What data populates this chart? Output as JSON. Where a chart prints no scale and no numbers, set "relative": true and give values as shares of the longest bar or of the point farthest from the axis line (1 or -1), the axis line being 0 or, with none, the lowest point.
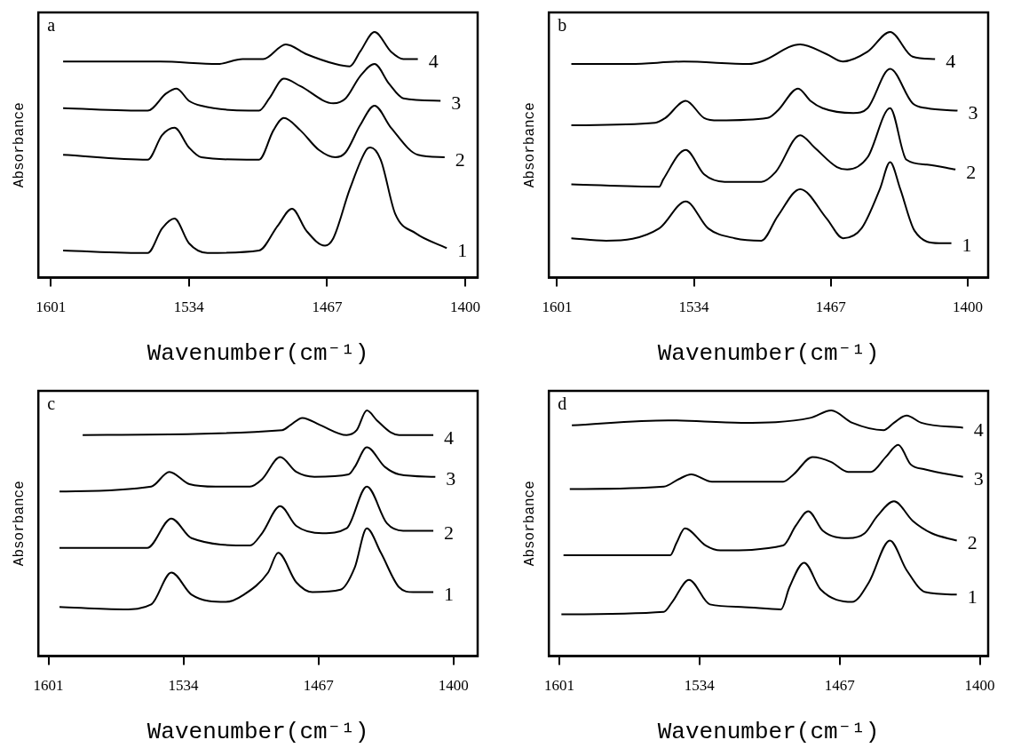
{
  "chart_data": [
    {
      "type": "line",
      "annotations": [
        "a"
      ],
      "xlabel": "Wavenumber(cm⁻¹)",
      "ylabel": "Absorbance",
      "relative": true,
      "xlim": [
        1607,
        1394
      ],
      "xticks": [
        1601,
        1534,
        1467,
        1400
      ],
      "marker": "none",
      "line_style": "solid",
      "tick_labels": "x",
      "series": [
        {
          "name": "4",
          "color": "#000000",
          "x": [
            1595,
            1548,
            1520,
            1508,
            1498,
            1487,
            1477,
            1463,
            1456,
            1451,
            1444,
            1436,
            1430,
            1423
          ],
          "values": [
            0.88,
            0.88,
            0.87,
            0.89,
            0.89,
            0.95,
            0.91,
            0.87,
            0.86,
            0.92,
            1.0,
            0.92,
            0.89,
            0.89
          ]
        },
        {
          "name": "3",
          "color": "#000000",
          "x": [
            1595,
            1554,
            1545,
            1540,
            1534,
            1528,
            1505,
            1500,
            1495,
            1488,
            1480,
            1464,
            1458,
            1451,
            1444,
            1437,
            1430,
            1412
          ],
          "values": [
            0.69,
            0.68,
            0.75,
            0.77,
            0.72,
            0.7,
            0.68,
            0.68,
            0.73,
            0.81,
            0.78,
            0.71,
            0.73,
            0.82,
            0.87,
            0.79,
            0.73,
            0.72
          ]
        },
        {
          "name": "2",
          "color": "#000000",
          "x": [
            1595,
            1554,
            1547,
            1541,
            1534,
            1528,
            1506,
            1500,
            1493,
            1488,
            1480,
            1471,
            1463,
            1458,
            1451,
            1444,
            1436,
            1423,
            1410
          ],
          "values": [
            0.5,
            0.48,
            0.58,
            0.61,
            0.53,
            0.49,
            0.48,
            0.48,
            0.6,
            0.65,
            0.6,
            0.52,
            0.49,
            0.51,
            0.62,
            0.7,
            0.61,
            0.5,
            0.49
          ]
        },
        {
          "name": "1",
          "color": "#000000",
          "x": [
            1595,
            1554,
            1547,
            1541,
            1534,
            1525,
            1500,
            1491,
            1484,
            1477,
            1468,
            1464,
            1456,
            1448,
            1446,
            1441,
            1434,
            1424,
            1409
          ],
          "values": [
            0.11,
            0.1,
            0.2,
            0.24,
            0.14,
            0.1,
            0.11,
            0.21,
            0.28,
            0.19,
            0.13,
            0.16,
            0.36,
            0.52,
            0.53,
            0.48,
            0.26,
            0.18,
            0.12
          ]
        }
      ]
    },
    {
      "type": "line",
      "annotations": [
        "b"
      ],
      "xlabel": "Wavenumber(cm⁻¹)",
      "ylabel": "Absorbance",
      "relative": true,
      "xlim": [
        1605,
        1390
      ],
      "xticks": [
        1601,
        1534,
        1467,
        1400
      ],
      "marker": "none",
      "line_style": "solid",
      "tick_labels": "x",
      "series": [
        {
          "name": "4",
          "color": "#000000",
          "x": [
            1594,
            1565,
            1539,
            1507,
            1501,
            1482,
            1469,
            1461,
            1449,
            1438,
            1427,
            1416
          ],
          "values": [
            0.87,
            0.87,
            0.88,
            0.87,
            0.88,
            0.95,
            0.91,
            0.88,
            0.92,
            1.0,
            0.9,
            0.89
          ]
        },
        {
          "name": "3",
          "color": "#000000",
          "x": [
            1594,
            1553,
            1548,
            1538,
            1529,
            1522,
            1498,
            1493,
            1483,
            1477,
            1471,
            1456,
            1449,
            1438,
            1427,
            1420,
            1405
          ],
          "values": [
            0.62,
            0.63,
            0.65,
            0.72,
            0.65,
            0.64,
            0.65,
            0.68,
            0.77,
            0.72,
            0.69,
            0.67,
            0.69,
            0.85,
            0.71,
            0.69,
            0.68
          ]
        },
        {
          "name": "2",
          "color": "#000000",
          "x": [
            1594,
            1551,
            1549,
            1538,
            1529,
            1519,
            1501,
            1494,
            1482,
            1475,
            1464,
            1459,
            1449,
            1438,
            1430,
            1420,
            1406
          ],
          "values": [
            0.38,
            0.37,
            0.4,
            0.52,
            0.42,
            0.39,
            0.39,
            0.43,
            0.58,
            0.53,
            0.45,
            0.44,
            0.49,
            0.69,
            0.48,
            0.46,
            0.44
          ]
        },
        {
          "name": "1",
          "color": "#000000",
          "x": [
            1594,
            1577,
            1551,
            1538,
            1527,
            1514,
            1501,
            1493,
            1482,
            1469,
            1461,
            1452,
            1443,
            1438,
            1433,
            1426,
            1414,
            1408
          ],
          "values": [
            0.16,
            0.15,
            0.2,
            0.31,
            0.2,
            0.16,
            0.15,
            0.25,
            0.36,
            0.24,
            0.16,
            0.2,
            0.36,
            0.47,
            0.36,
            0.19,
            0.14,
            0.14
          ]
        }
      ]
    },
    {
      "type": "line",
      "annotations": [
        "c"
      ],
      "xlabel": "Wavenumber(cm⁻¹)",
      "ylabel": "Absorbance",
      "relative": true,
      "xlim": [
        1606,
        1388
      ],
      "xticks": [
        1601,
        1534,
        1467,
        1400
      ],
      "marker": "none",
      "line_style": "solid",
      "tick_labels": "x",
      "series": [
        {
          "name": "4",
          "color": "#000000",
          "x": [
            1584,
            1485,
            1481,
            1475,
            1466,
            1453,
            1448,
            1443,
            1438,
            1431,
            1427,
            1410
          ],
          "values": [
            0.9,
            0.92,
            0.94,
            0.97,
            0.94,
            0.9,
            0.92,
            1.0,
            0.96,
            0.91,
            0.9,
            0.9
          ]
        },
        {
          "name": "3",
          "color": "#000000",
          "x": [
            1595.5,
            1550,
            1541,
            1531,
            1518,
            1501,
            1495,
            1486,
            1478,
            1469,
            1452,
            1449,
            1443,
            1434,
            1427,
            1409
          ],
          "values": [
            0.67,
            0.69,
            0.75,
            0.7,
            0.69,
            0.69,
            0.72,
            0.81,
            0.75,
            0.73,
            0.74,
            0.77,
            0.85,
            0.77,
            0.74,
            0.73
          ]
        },
        {
          "name": "2",
          "color": "#000000",
          "x": [
            1595.5,
            1552,
            1540,
            1530,
            1501,
            1495,
            1486,
            1478,
            1465,
            1453,
            1443,
            1433,
            1425,
            1410
          ],
          "values": [
            0.44,
            0.44,
            0.56,
            0.48,
            0.45,
            0.5,
            0.61,
            0.53,
            0.5,
            0.52,
            0.69,
            0.54,
            0.51,
            0.51
          ]
        },
        {
          "name": "1",
          "color": "#000000",
          "x": [
            1595.5,
            1563.5,
            1550,
            1540,
            1530,
            1513,
            1504,
            1492,
            1487,
            1478,
            1470,
            1456,
            1449,
            1443,
            1436,
            1427,
            1420,
            1410
          ],
          "values": [
            0.2,
            0.19,
            0.21,
            0.34,
            0.25,
            0.22,
            0.25,
            0.34,
            0.42,
            0.3,
            0.26,
            0.27,
            0.36,
            0.52,
            0.42,
            0.28,
            0.26,
            0.26
          ]
        }
      ]
    },
    {
      "type": "line",
      "annotations": [
        "d"
      ],
      "xlabel": "Wavenumber(cm⁻¹)",
      "ylabel": "Absorbance",
      "relative": true,
      "xlim": [
        1606,
        1396
      ],
      "xticks": [
        1601,
        1534,
        1467,
        1400
      ],
      "marker": "none",
      "line_style": "solid",
      "tick_labels": "x",
      "series": [
        {
          "name": "4",
          "color": "#000000",
          "x": [
            1595,
            1549,
            1514,
            1481,
            1471,
            1461,
            1446,
            1441,
            1435,
            1428,
            1408
          ],
          "values": [
            0.94,
            0.96,
            0.95,
            0.97,
            1.0,
            0.95,
            0.92,
            0.95,
            0.98,
            0.95,
            0.93
          ]
        },
        {
          "name": "3",
          "color": "#000000",
          "x": [
            1596,
            1551,
            1544,
            1538,
            1528,
            1494,
            1489,
            1480,
            1471,
            1463,
            1452,
            1445,
            1439,
            1433,
            1426,
            1408
          ],
          "values": [
            0.68,
            0.69,
            0.72,
            0.74,
            0.71,
            0.71,
            0.74,
            0.81,
            0.79,
            0.75,
            0.75,
            0.81,
            0.86,
            0.78,
            0.76,
            0.73
          ]
        },
        {
          "name": "2",
          "color": "#000000",
          "x": [
            1599,
            1548,
            1545,
            1541,
            1531,
            1524,
            1494,
            1488,
            1482,
            1475,
            1463,
            1455,
            1449,
            1441,
            1432,
            1423,
            1411
          ],
          "values": [
            0.41,
            0.41,
            0.46,
            0.52,
            0.45,
            0.43,
            0.45,
            0.53,
            0.59,
            0.51,
            0.48,
            0.5,
            0.57,
            0.63,
            0.55,
            0.5,
            0.47
          ]
        },
        {
          "name": "1",
          "color": "#000000",
          "x": [
            1600,
            1551,
            1547,
            1539,
            1529,
            1514,
            1495,
            1491,
            1484,
            1476,
            1461,
            1453,
            1443,
            1435,
            1426,
            1411
          ],
          "values": [
            0.17,
            0.18,
            0.22,
            0.31,
            0.21,
            0.2,
            0.19,
            0.28,
            0.38,
            0.27,
            0.22,
            0.3,
            0.47,
            0.35,
            0.26,
            0.25
          ]
        }
      ]
    }
  ]
}
